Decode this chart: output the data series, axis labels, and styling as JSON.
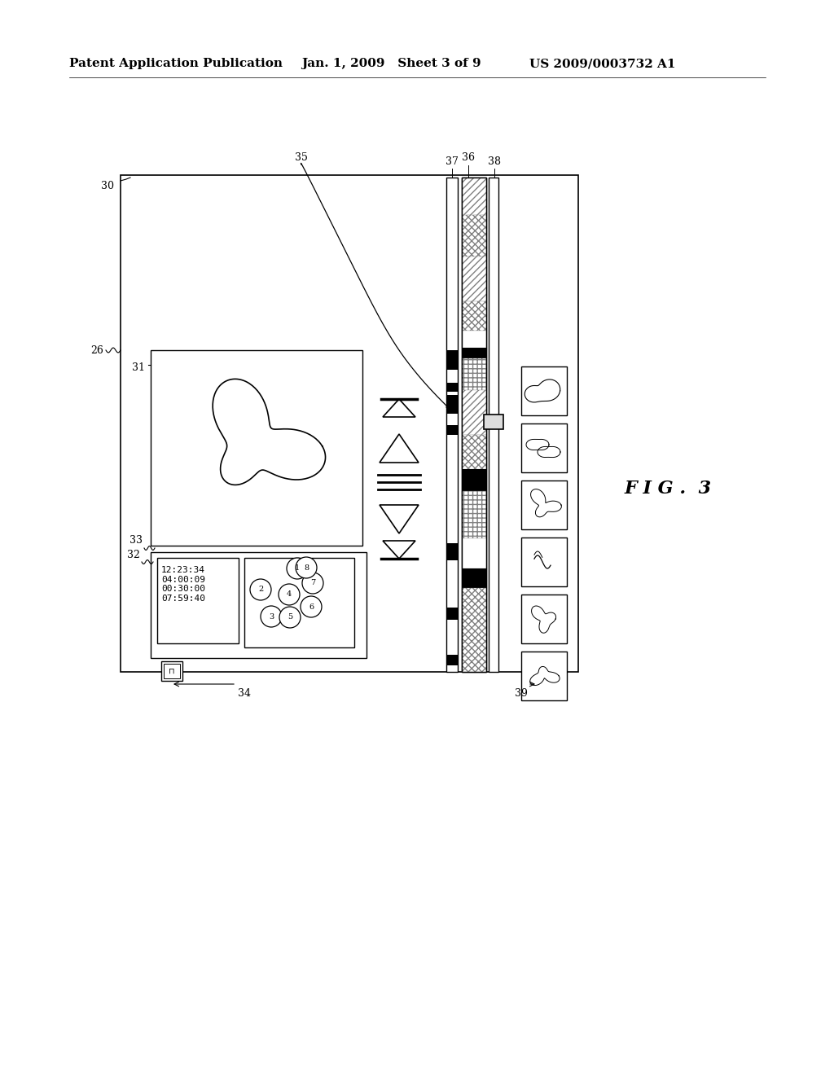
{
  "bg_color": "#ffffff",
  "header_left": "Patent Application Publication",
  "header_mid": "Jan. 1, 2009   Sheet 3 of 9",
  "header_right": "US 2009/0003732 A1",
  "fig_label": "F I G .  3"
}
